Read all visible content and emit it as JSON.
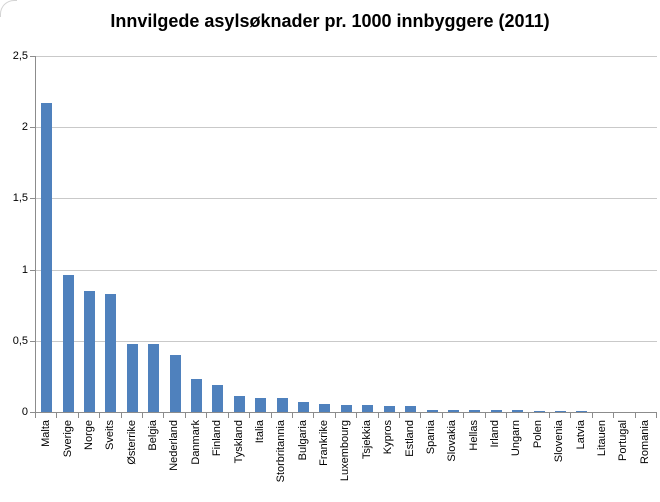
{
  "chart_data": {
    "type": "bar",
    "title": "Innvilgede asylsøknader pr. 1000 innbyggere (2011)",
    "xlabel": "",
    "ylabel": "",
    "categories": [
      "Malta",
      "Sverige",
      "Norge",
      "Sveits",
      "Østerrike",
      "Belgia",
      "Nederland",
      "Danmark",
      "Finland",
      "Tyskland",
      "Italia",
      "Storbritannia",
      "Bulgaria",
      "Frankrike",
      "Luxembourg",
      "Tsjekkia",
      "Kypros",
      "Estland",
      "Spania",
      "Slovakia",
      "Hellas",
      "Irland",
      "Ungarn",
      "Polen",
      "Slovenia",
      "Latvia",
      "Litauen",
      "Portugal",
      "Romania"
    ],
    "values": [
      2.17,
      0.96,
      0.85,
      0.83,
      0.48,
      0.48,
      0.4,
      0.23,
      0.19,
      0.11,
      0.1,
      0.1,
      0.07,
      0.055,
      0.05,
      0.05,
      0.045,
      0.04,
      0.012,
      0.012,
      0.014,
      0.015,
      0.015,
      0.008,
      0.007,
      0.008,
      0.002,
      0.001,
      0.001
    ],
    "ylim": [
      0,
      2.5
    ],
    "ytick_interval": 0.5,
    "ytick_labels_top_down": [
      "2,5",
      "2",
      "1,5",
      "1",
      "0,5",
      "0"
    ],
    "decimal_separator": ",",
    "grid": true,
    "legend": false,
    "colors": {
      "bar": "#4f81bd",
      "gridline": "#c9c9c9",
      "axis": "#8c8c8c",
      "text": "#000000",
      "background": "#ffffff"
    }
  }
}
